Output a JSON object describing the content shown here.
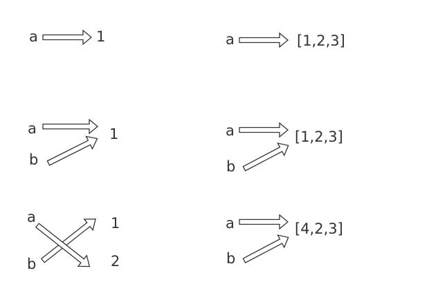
{
  "panels": [
    {
      "vars": [
        "a"
      ],
      "values": [
        "1"
      ]
    },
    {
      "vars": [
        "a"
      ],
      "values": [
        "[1,2,3]"
      ]
    },
    {
      "vars": [
        "a",
        "b"
      ],
      "values": [
        "1"
      ]
    },
    {
      "vars": [
        "a",
        "b"
      ],
      "values": [
        "[1,2,3]"
      ]
    },
    {
      "vars": [
        "a",
        "b"
      ],
      "values": [
        "1",
        "2"
      ]
    },
    {
      "vars": [
        "a",
        "b"
      ],
      "values": [
        "[4,2,3]"
      ]
    }
  ],
  "colors": {
    "stroke": "#333333",
    "text": "#333333",
    "arrow_fill": "#ffffff",
    "background": "#ffffff"
  }
}
